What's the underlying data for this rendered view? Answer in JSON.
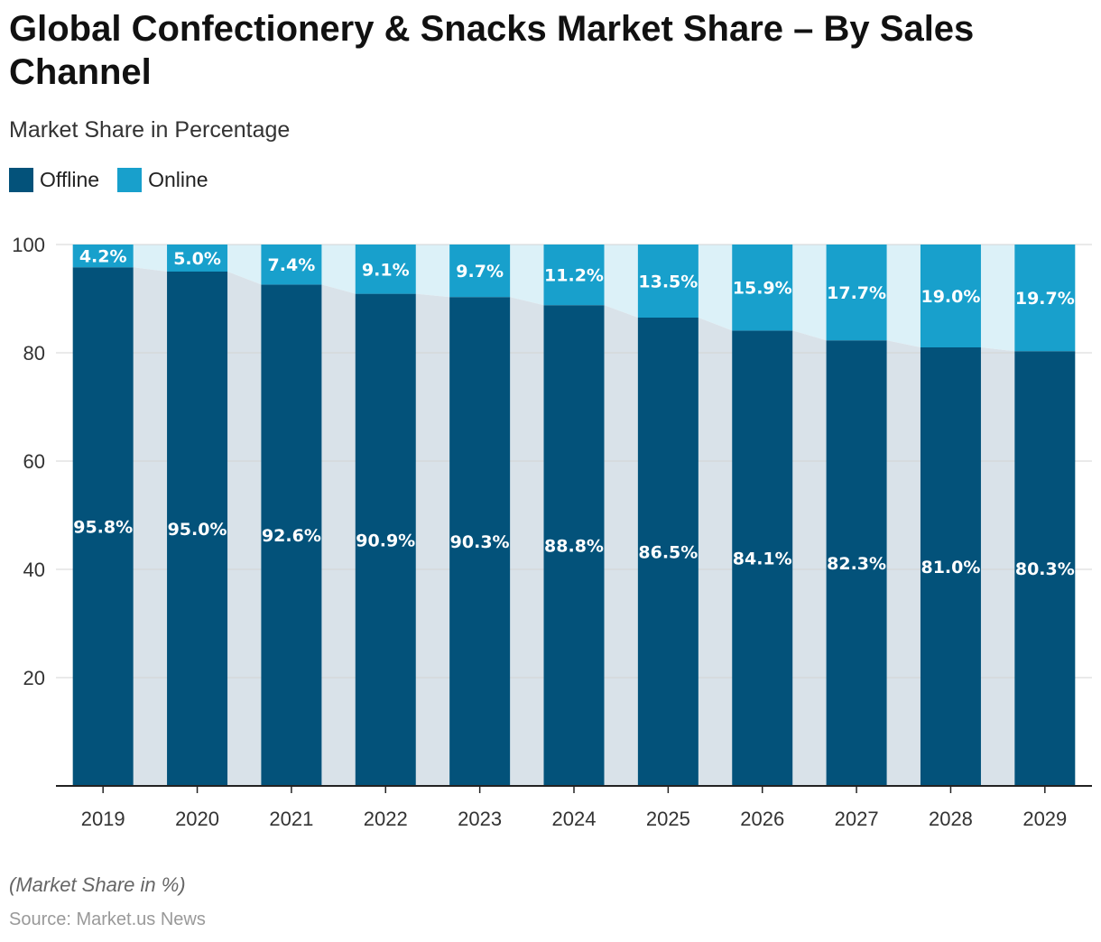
{
  "title": "Global Confectionery & Snacks Market Share – By Sales Channel",
  "subtitle": "Market Share in Percentage",
  "footnote": "(Market Share in %)",
  "source": "Source: Market.us News",
  "legend": [
    {
      "label": "Offline",
      "color": "#03527a"
    },
    {
      "label": "Online",
      "color": "#18a0cc"
    }
  ],
  "colors": {
    "offline": "#03527a",
    "online": "#18a0cc",
    "offline_band": "#d9e2e9",
    "online_band": "#dcf1f8",
    "grid": "#d4d4d4",
    "axis": "#222222"
  },
  "chart_data": {
    "type": "bar",
    "stacked": true,
    "categories": [
      "2019",
      "2020",
      "2021",
      "2022",
      "2023",
      "2024",
      "2025",
      "2026",
      "2027",
      "2028",
      "2029"
    ],
    "series": [
      {
        "name": "Offline",
        "values": [
          95.8,
          95.0,
          92.6,
          90.9,
          90.3,
          88.8,
          86.5,
          84.1,
          82.3,
          81.0,
          80.3
        ],
        "labels": [
          "95.8%",
          "95.0%",
          "92.6%",
          "90.9%",
          "90.3%",
          "88.8%",
          "86.5%",
          "84.1%",
          "82.3%",
          "81.0%",
          "80.3%"
        ]
      },
      {
        "name": "Online",
        "values": [
          4.2,
          5.0,
          7.4,
          9.1,
          9.7,
          11.2,
          13.5,
          15.9,
          17.7,
          19.0,
          19.7
        ],
        "labels": [
          "4.2%",
          "5.0%",
          "7.4%",
          "9.1%",
          "9.7%",
          "11.2%",
          "13.5%",
          "15.9%",
          "17.7%",
          "19.0%",
          "19.7%"
        ]
      }
    ],
    "ylim": [
      0,
      100
    ],
    "yticks": [
      20,
      40,
      60,
      80,
      100
    ],
    "grid": true,
    "legend_position": "top-left"
  }
}
